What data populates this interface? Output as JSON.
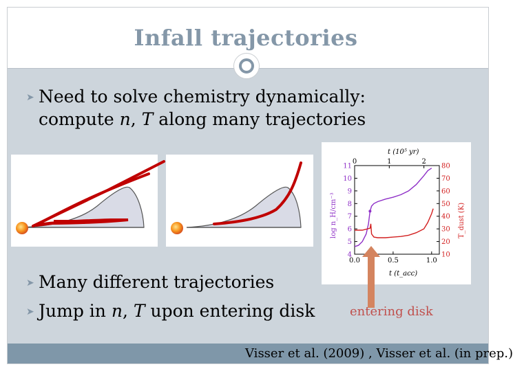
{
  "slide": {
    "title": "Infall trajectories",
    "bullets": {
      "b1_line1": "Need to solve chemistry dynamically:",
      "b1_line2_pre": "compute ",
      "b1_n": "n",
      "b1_sep": ", ",
      "b1_T": "T",
      "b1_line2_post": " along many trajectories",
      "b2": "Many different trajectories",
      "b3_pre": "Jump in ",
      "b3_n": "n",
      "b3_sep": ", ",
      "b3_T": "T",
      "b3_post": " upon entering disk"
    },
    "annotation": "entering disk",
    "citation": "Visser et al. (2009) , Visser et al. (in prep.)"
  },
  "colors": {
    "title": "#8497a8",
    "body_background": "#cdd5dc",
    "footer_bar": "#7f97a9",
    "annotation": "#c0504d",
    "arrow": "#d4845f",
    "trajectory": "#c00000",
    "disk_fill": "#d9dbe6",
    "chart_purple": "#8e2fc7",
    "chart_red": "#d21f1f"
  },
  "chart_data": {
    "type": "line",
    "top_axis_label": "t (10⁵ yr)",
    "top_ticks": [
      "0",
      "1",
      "2"
    ],
    "xlabel": "t (t_acc)",
    "x_ticks": [
      "0.0",
      "0.5",
      "1.0"
    ],
    "xlim": [
      0,
      1.1
    ],
    "ylabel_left": "log n_H/cm⁻³",
    "ylim_left": [
      4,
      11
    ],
    "y_ticks_left": [
      "4",
      "5",
      "6",
      "7",
      "8",
      "9",
      "10",
      "11"
    ],
    "ylabel_right": "T_dust (K)",
    "ylim_right": [
      10,
      80
    ],
    "y_ticks_right": [
      "10",
      "20",
      "30",
      "40",
      "50",
      "60",
      "70",
      "80"
    ],
    "series": [
      {
        "axis": "left",
        "x": [
          0.0,
          0.05,
          0.1,
          0.15,
          0.18,
          0.2,
          0.22,
          0.25,
          0.3,
          0.4,
          0.5,
          0.6,
          0.7,
          0.8,
          0.9,
          0.95,
          1.0
        ],
        "values": [
          4.6,
          4.7,
          5.0,
          5.6,
          6.4,
          7.4,
          7.8,
          8.0,
          8.15,
          8.35,
          8.5,
          8.7,
          9.0,
          9.5,
          10.2,
          10.6,
          10.8
        ]
      },
      {
        "axis": "right",
        "x": [
          0.0,
          0.1,
          0.2,
          0.21,
          0.22,
          0.25,
          0.3,
          0.4,
          0.5,
          0.6,
          0.7,
          0.8,
          0.9,
          0.95,
          1.0,
          1.02
        ],
        "values": [
          29.0,
          29.0,
          30.5,
          34.0,
          26.0,
          23.5,
          23.0,
          23.0,
          23.5,
          24.0,
          25.0,
          27.0,
          30.0,
          35.0,
          42.0,
          46.0
        ]
      }
    ]
  }
}
